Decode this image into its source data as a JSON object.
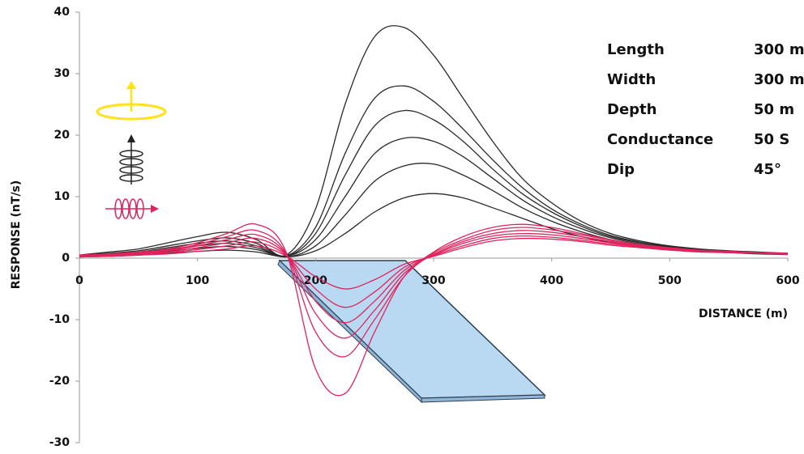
{
  "chart_data": {
    "type": "line",
    "ylabel": "RESPONSE (nT/s)",
    "xlabel": "DISTANCE (m)",
    "xlim": [
      0,
      600
    ],
    "xticks": [
      0,
      100,
      200,
      300,
      400,
      500,
      600
    ],
    "ylim": [
      -30,
      40
    ],
    "yticks": [
      -30,
      -20,
      -10,
      0,
      10,
      20,
      30,
      40
    ],
    "x": [
      0,
      25,
      50,
      75,
      100,
      125,
      150,
      175,
      200,
      225,
      250,
      275,
      300,
      325,
      350,
      375,
      400,
      425,
      450,
      475,
      500,
      525,
      550,
      575,
      600
    ],
    "series": [
      {
        "color": "#2a2a2a",
        "values": [
          0.5,
          1,
          1.5,
          2.5,
          3.5,
          4.2,
          3,
          0.5,
          8,
          25,
          36,
          37.5,
          33,
          26,
          19,
          13,
          9,
          6,
          4,
          2.8,
          2,
          1.5,
          1.2,
          1,
          0.8
        ]
      },
      {
        "color": "#2a2a2a",
        "values": [
          0.4,
          0.8,
          1.2,
          2,
          2.8,
          3.3,
          2.4,
          0.4,
          5,
          17,
          26,
          28,
          25.5,
          21,
          16,
          11.5,
          8,
          5.5,
          3.7,
          2.6,
          1.9,
          1.4,
          1.1,
          0.9,
          0.7
        ]
      },
      {
        "color": "#2a2a2a",
        "values": [
          0.4,
          0.7,
          1,
          1.7,
          2.4,
          2.8,
          2,
          0.3,
          4,
          13.5,
          21.5,
          24,
          22.5,
          19,
          14.5,
          10.5,
          7.5,
          5.2,
          3.5,
          2.5,
          1.8,
          1.3,
          1.1,
          0.9,
          0.7
        ]
      },
      {
        "color": "#2a2a2a",
        "values": [
          0.3,
          0.6,
          0.9,
          1.4,
          2,
          2.4,
          1.7,
          0.3,
          3,
          10,
          17,
          19.5,
          19,
          16.5,
          13,
          9.5,
          6.8,
          4.8,
          3.3,
          2.3,
          1.7,
          1.3,
          1,
          0.8,
          0.7
        ]
      },
      {
        "color": "#2a2a2a",
        "values": [
          0.3,
          0.5,
          0.7,
          1.1,
          1.6,
          1.9,
          1.4,
          0.2,
          2,
          7,
          12.5,
          15,
          15.3,
          13.5,
          11,
          8.2,
          6,
          4.3,
          3,
          2.1,
          1.6,
          1.2,
          1,
          0.8,
          0.6
        ]
      },
      {
        "color": "#2a2a2a",
        "values": [
          0.2,
          0.3,
          0.5,
          0.8,
          1.1,
          1.3,
          1,
          0.2,
          1.2,
          4,
          7.5,
          9.8,
          10.5,
          9.8,
          8.2,
          6.5,
          4.8,
          3.5,
          2.6,
          1.9,
          1.4,
          1.1,
          0.9,
          0.7,
          0.6
        ]
      },
      {
        "color": "#e0245e",
        "values": [
          0.5,
          0.7,
          1,
          1.5,
          2.5,
          4,
          5.5,
          1,
          -18,
          -22,
          -12,
          -3,
          1,
          3.5,
          5,
          5.5,
          5,
          4,
          3,
          2.2,
          1.7,
          1.3,
          1.1,
          0.9,
          0.8
        ]
      },
      {
        "color": "#e0245e",
        "values": [
          0.4,
          0.6,
          0.9,
          1.3,
          2.2,
          3.5,
          4.5,
          0.8,
          -12,
          -16,
          -10,
          -3,
          0.8,
          3,
          4.5,
          5,
          4.6,
          3.8,
          2.9,
          2.1,
          1.6,
          1.3,
          1.1,
          0.9,
          0.8
        ]
      },
      {
        "color": "#e0245e",
        "values": [
          0.4,
          0.6,
          0.8,
          1.2,
          2,
          3,
          3.8,
          0.7,
          -9,
          -13,
          -8.5,
          -2.5,
          0.6,
          2.7,
          4,
          4.5,
          4.2,
          3.5,
          2.7,
          2,
          1.6,
          1.2,
          1,
          0.9,
          0.7
        ]
      },
      {
        "color": "#e0245e",
        "values": [
          0.3,
          0.5,
          0.7,
          1,
          1.7,
          2.5,
          3.2,
          0.6,
          -7,
          -10.5,
          -7,
          -2,
          0.5,
          2.4,
          3.6,
          4,
          3.8,
          3.2,
          2.5,
          1.9,
          1.5,
          1.2,
          1,
          0.8,
          0.7
        ]
      },
      {
        "color": "#e0245e",
        "values": [
          0.3,
          0.4,
          0.6,
          0.9,
          1.4,
          2,
          2.6,
          0.5,
          -5,
          -8,
          -5.5,
          -1.5,
          0.4,
          2,
          3.2,
          3.6,
          3.4,
          2.9,
          2.3,
          1.8,
          1.4,
          1.1,
          0.9,
          0.8,
          0.7
        ]
      },
      {
        "color": "#e0245e",
        "values": [
          0.2,
          0.3,
          0.5,
          0.7,
          1.1,
          1.5,
          2,
          0.4,
          -3,
          -5,
          -3.5,
          -1,
          0.3,
          1.7,
          2.8,
          3.2,
          3.1,
          2.7,
          2.1,
          1.7,
          1.3,
          1,
          0.9,
          0.8,
          0.6
        ]
      }
    ]
  },
  "table": {
    "rows": [
      [
        "Length",
        "300 m"
      ],
      [
        "Width",
        "300 m"
      ],
      [
        "Depth",
        "50 m"
      ],
      [
        "Conductance",
        "50 S"
      ],
      [
        "Dip",
        "45°"
      ]
    ]
  }
}
